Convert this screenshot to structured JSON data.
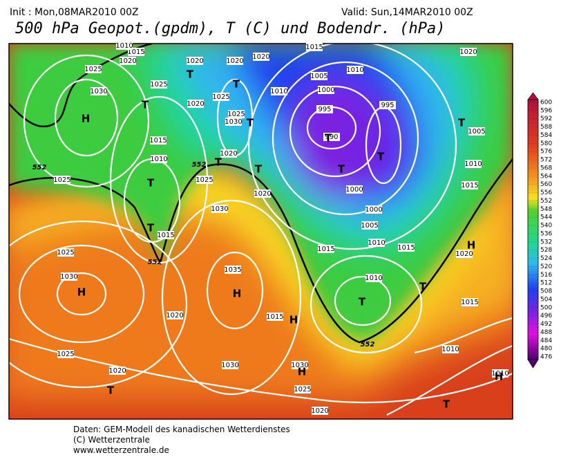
{
  "header": {
    "init": "Init : Mon,08MAR2010 00Z",
    "valid": "Valid: Sun,14MAR2010 00Z",
    "title": "500 hPa Geopot.(gpdm), T (C) und Bodendr. (hPa)"
  },
  "footer": {
    "line1": "Daten: GEM-Modell des kanadischen Wetterdienstes",
    "line2": "(C) Wetterzentrale",
    "line3": "www.wetterzentrale.de"
  },
  "legend": {
    "labels": [
      600,
      596,
      592,
      588,
      584,
      580,
      576,
      572,
      568,
      564,
      560,
      556,
      552,
      548,
      544,
      540,
      536,
      532,
      528,
      524,
      520,
      516,
      512,
      508,
      504,
      500,
      496,
      492,
      488,
      484,
      480,
      476
    ]
  },
  "map": {
    "highs": [
      "H",
      "H",
      "H",
      "H",
      "H",
      "H",
      "H"
    ],
    "lows": [
      "T",
      "T",
      "T",
      "T",
      "T",
      "T",
      "T",
      "T",
      "T",
      "T",
      "T",
      "T",
      "T",
      "T",
      "T",
      "T"
    ],
    "contour_labels": [
      "552",
      "552",
      "552",
      "552"
    ],
    "isobar_labels": [
      1015,
      1010,
      1020,
      1025,
      1030,
      1025,
      1020,
      1025,
      1020,
      1020,
      1025,
      1030,
      1020,
      1015,
      1010,
      1025,
      1025,
      1020,
      1030,
      1015,
      1015,
      1020,
      1005,
      1010,
      1010,
      1000,
      995,
      995,
      990,
      1000,
      1000,
      1005,
      1015,
      1010,
      1015,
      1020,
      1010,
      1020,
      1005,
      1010,
      1015,
      1015,
      1025,
      1030,
      1035,
      1020,
      1015,
      1030,
      1030,
      1025,
      1025,
      1020,
      1020,
      1010,
      1010
    ]
  }
}
